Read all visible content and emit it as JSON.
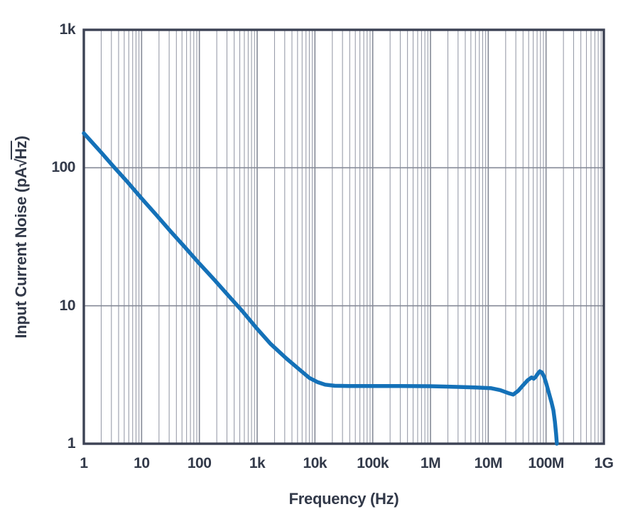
{
  "chart_data": {
    "type": "line",
    "title": "",
    "xlabel": "Frequency (Hz)",
    "ylabel": "Input Current Noise (pA√Hz)",
    "ylabel_parts": {
      "prefix": "Input Current Noise (pA",
      "radical": "√",
      "radicand": "Hz",
      "suffix": ")"
    },
    "x_scale": "log",
    "y_scale": "log",
    "xlim": [
      1,
      1000000000
    ],
    "ylim": [
      1,
      1000
    ],
    "grid": {
      "x_minor": true,
      "y_minor": false,
      "on": true
    },
    "legend_position": "none",
    "x_ticks": [
      {
        "value": 1,
        "label": "1"
      },
      {
        "value": 10,
        "label": "10"
      },
      {
        "value": 100,
        "label": "100"
      },
      {
        "value": 1000,
        "label": "1k"
      },
      {
        "value": 10000,
        "label": "10k"
      },
      {
        "value": 100000,
        "label": "100k"
      },
      {
        "value": 1000000,
        "label": "1M"
      },
      {
        "value": 10000000,
        "label": "10M"
      },
      {
        "value": 100000000,
        "label": "100M"
      },
      {
        "value": 1000000000,
        "label": "1G"
      }
    ],
    "y_ticks": [
      {
        "value": 1,
        "label": "1"
      },
      {
        "value": 10,
        "label": "10"
      },
      {
        "value": 100,
        "label": "100"
      },
      {
        "value": 1000,
        "label": "1k"
      }
    ],
    "series": [
      {
        "name": "input-current-noise",
        "color": "#1471b8",
        "points": [
          [
            1,
            178
          ],
          [
            2,
            129
          ],
          [
            3.2,
            103
          ],
          [
            5.6,
            79.5
          ],
          [
            10,
            60
          ],
          [
            18,
            45.5
          ],
          [
            32,
            34.5
          ],
          [
            56,
            26.6
          ],
          [
            100,
            20.2
          ],
          [
            180,
            15.5
          ],
          [
            320,
            11.8
          ],
          [
            560,
            9.1
          ],
          [
            1000,
            6.8
          ],
          [
            1700,
            5.3
          ],
          [
            3200,
            4.15
          ],
          [
            5600,
            3.4
          ],
          [
            8000,
            3.0
          ],
          [
            11000,
            2.8
          ],
          [
            15000,
            2.68
          ],
          [
            22000,
            2.63
          ],
          [
            40000,
            2.62
          ],
          [
            100000,
            2.62
          ],
          [
            300000,
            2.62
          ],
          [
            1000000,
            2.61
          ],
          [
            3000000,
            2.58
          ],
          [
            6000000,
            2.56
          ],
          [
            11000000,
            2.53
          ],
          [
            16000000,
            2.45
          ],
          [
            22000000,
            2.33
          ],
          [
            27000000,
            2.27
          ],
          [
            33000000,
            2.42
          ],
          [
            40000000,
            2.65
          ],
          [
            48000000,
            2.88
          ],
          [
            56000000,
            3.02
          ],
          [
            61000000,
            2.96
          ],
          [
            66000000,
            3.05
          ],
          [
            72000000,
            3.22
          ],
          [
            78000000,
            3.35
          ],
          [
            85000000,
            3.28
          ],
          [
            93000000,
            3.05
          ],
          [
            103000000,
            2.65
          ],
          [
            113000000,
            2.3
          ],
          [
            124000000,
            2.0
          ],
          [
            134000000,
            1.75
          ],
          [
            142000000,
            1.45
          ],
          [
            149000000,
            1.18
          ],
          [
            154000000,
            1.0
          ]
        ]
      }
    ]
  },
  "colors": {
    "curve": "#1471b8",
    "grid_minor": "#999daa",
    "grid_major": "#858a97",
    "axis_border": "#3c4254",
    "text": "#323949",
    "background": "#ffffff"
  }
}
